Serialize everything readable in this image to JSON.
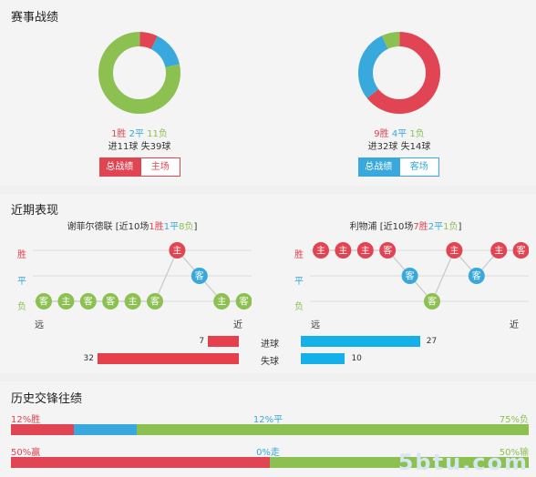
{
  "record": {
    "title": "赛事战绩",
    "left": {
      "wins": "1胜",
      "draws": "2平",
      "losses": "11负",
      "win": 1,
      "draw": 2,
      "loss": 11,
      "goals_for": "进11球",
      "goals_against": "失39球",
      "tab_active": "总战绩",
      "tab_other": "主场"
    },
    "right": {
      "wins": "9胜",
      "draws": "4平",
      "losses": "1负",
      "win": 9,
      "draw": 4,
      "loss": 1,
      "goals_for": "进32球",
      "goals_against": "失14球",
      "tab_active": "总战绩",
      "tab_other": "客场"
    },
    "colors": {
      "win": "#e14452",
      "draw": "#39a8dc",
      "loss": "#8cc152"
    }
  },
  "recent": {
    "title": "近期表现",
    "left": {
      "team": "谢菲尔德联",
      "summary_prefix": "[近10场",
      "w": "1胜",
      "d": "1平",
      "l": "8负",
      "summary_suffix": "]",
      "results": [
        {
          "r": "L",
          "v": "客"
        },
        {
          "r": "L",
          "v": "主"
        },
        {
          "r": "L",
          "v": "客"
        },
        {
          "r": "L",
          "v": "客"
        },
        {
          "r": "L",
          "v": "主"
        },
        {
          "r": "L",
          "v": "客"
        },
        {
          "r": "W",
          "v": "主"
        },
        {
          "r": "D",
          "v": "客"
        },
        {
          "r": "L",
          "v": "主"
        },
        {
          "r": "L",
          "v": "客"
        }
      ]
    },
    "right": {
      "team": "利物浦",
      "summary_prefix": "[近10场",
      "w": "7胜",
      "d": "2平",
      "l": "1负",
      "summary_suffix": "]",
      "results": [
        {
          "r": "W",
          "v": "主"
        },
        {
          "r": "W",
          "v": "主"
        },
        {
          "r": "W",
          "v": "主"
        },
        {
          "r": "W",
          "v": "客"
        },
        {
          "r": "D",
          "v": "客"
        },
        {
          "r": "L",
          "v": "客"
        },
        {
          "r": "W",
          "v": "主"
        },
        {
          "r": "D",
          "v": "客"
        },
        {
          "r": "W",
          "v": "主"
        },
        {
          "r": "W",
          "v": "客"
        }
      ]
    },
    "ylabels": {
      "win": "胜",
      "draw": "平",
      "loss": "负"
    },
    "xlabels": {
      "far": "远",
      "near": "近"
    },
    "goals": {
      "for_label": "进球",
      "against_label": "失球",
      "left_for": 7,
      "left_against": 32,
      "right_for": 27,
      "right_against": 10
    }
  },
  "history": {
    "title": "历史交锋往绩",
    "row1": {
      "win": "12%胜",
      "draw": "12%平",
      "loss": "75%负",
      "w": 12,
      "d": 12,
      "l": 75
    },
    "row2": {
      "win": "50%赢",
      "draw": "0%走",
      "loss": "50%输",
      "w": 50,
      "d": 0,
      "l": 50
    }
  },
  "watermark": "5btu.com"
}
